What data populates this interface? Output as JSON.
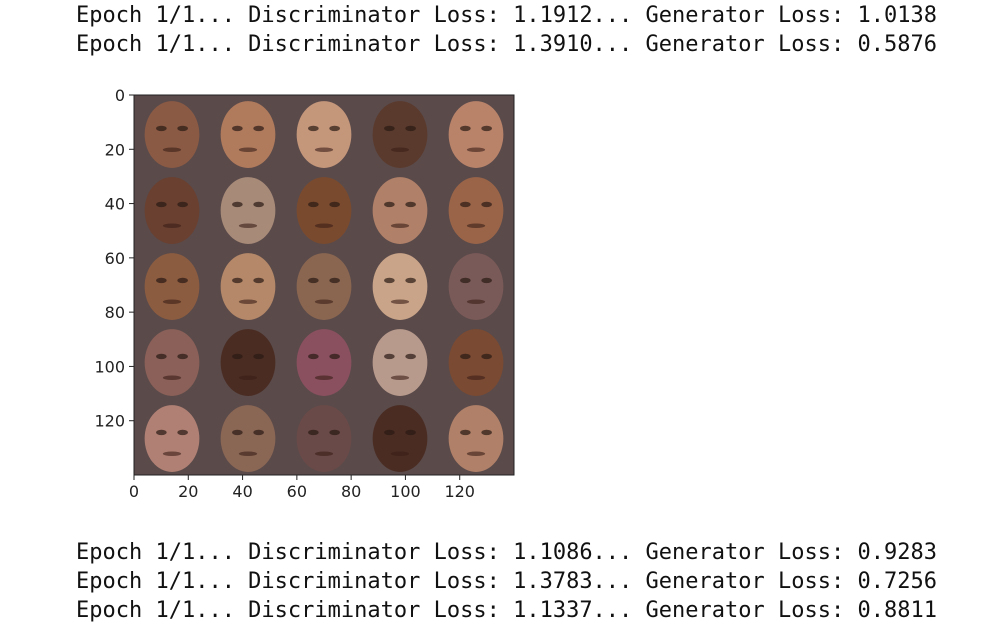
{
  "log_top": [
    "Epoch 1/1... Discriminator Loss: 1.1912... Generator Loss: 1.0138",
    "Epoch 1/1... Discriminator Loss: 1.3910... Generator Loss: 0.5876"
  ],
  "log_bottom": [
    "Epoch 1/1... Discriminator Loss: 1.1086... Generator Loss: 0.9283",
    "Epoch 1/1... Discriminator Loss: 1.3783... Generator Loss: 0.7256",
    "Epoch 1/1... Discriminator Loss: 1.1337... Generator Loss: 0.8811"
  ],
  "image_plot": {
    "content": "5x5 grid of generated face samples",
    "grid_rows": 5,
    "grid_cols": 5,
    "xlim": [
      0,
      140
    ],
    "ylim": [
      140,
      0
    ],
    "x_ticks": [
      "0",
      "20",
      "40",
      "60",
      "80",
      "100",
      "120"
    ],
    "y_ticks": [
      "0",
      "20",
      "40",
      "60",
      "80",
      "100",
      "120"
    ],
    "tick_values": [
      0,
      20,
      40,
      60,
      80,
      100,
      120
    ],
    "tile_colors": [
      [
        "#8a5a44",
        "#b07a5c",
        "#c4967a",
        "#5a3a2c",
        "#b9836a"
      ],
      [
        "#6a4030",
        "#a78a78",
        "#7a4a2e",
        "#b08068",
        "#9a6448"
      ],
      [
        "#8c5c40",
        "#b48868",
        "#8a6650",
        "#c9a488",
        "#7a5a58"
      ],
      [
        "#8a6058",
        "#4a2c22",
        "#8a5060",
        "#b89a8c",
        "#7a4a32"
      ],
      [
        "#b08074",
        "#8a6654",
        "#6a4a48",
        "#4a2c22",
        "#b08068"
      ]
    ]
  }
}
